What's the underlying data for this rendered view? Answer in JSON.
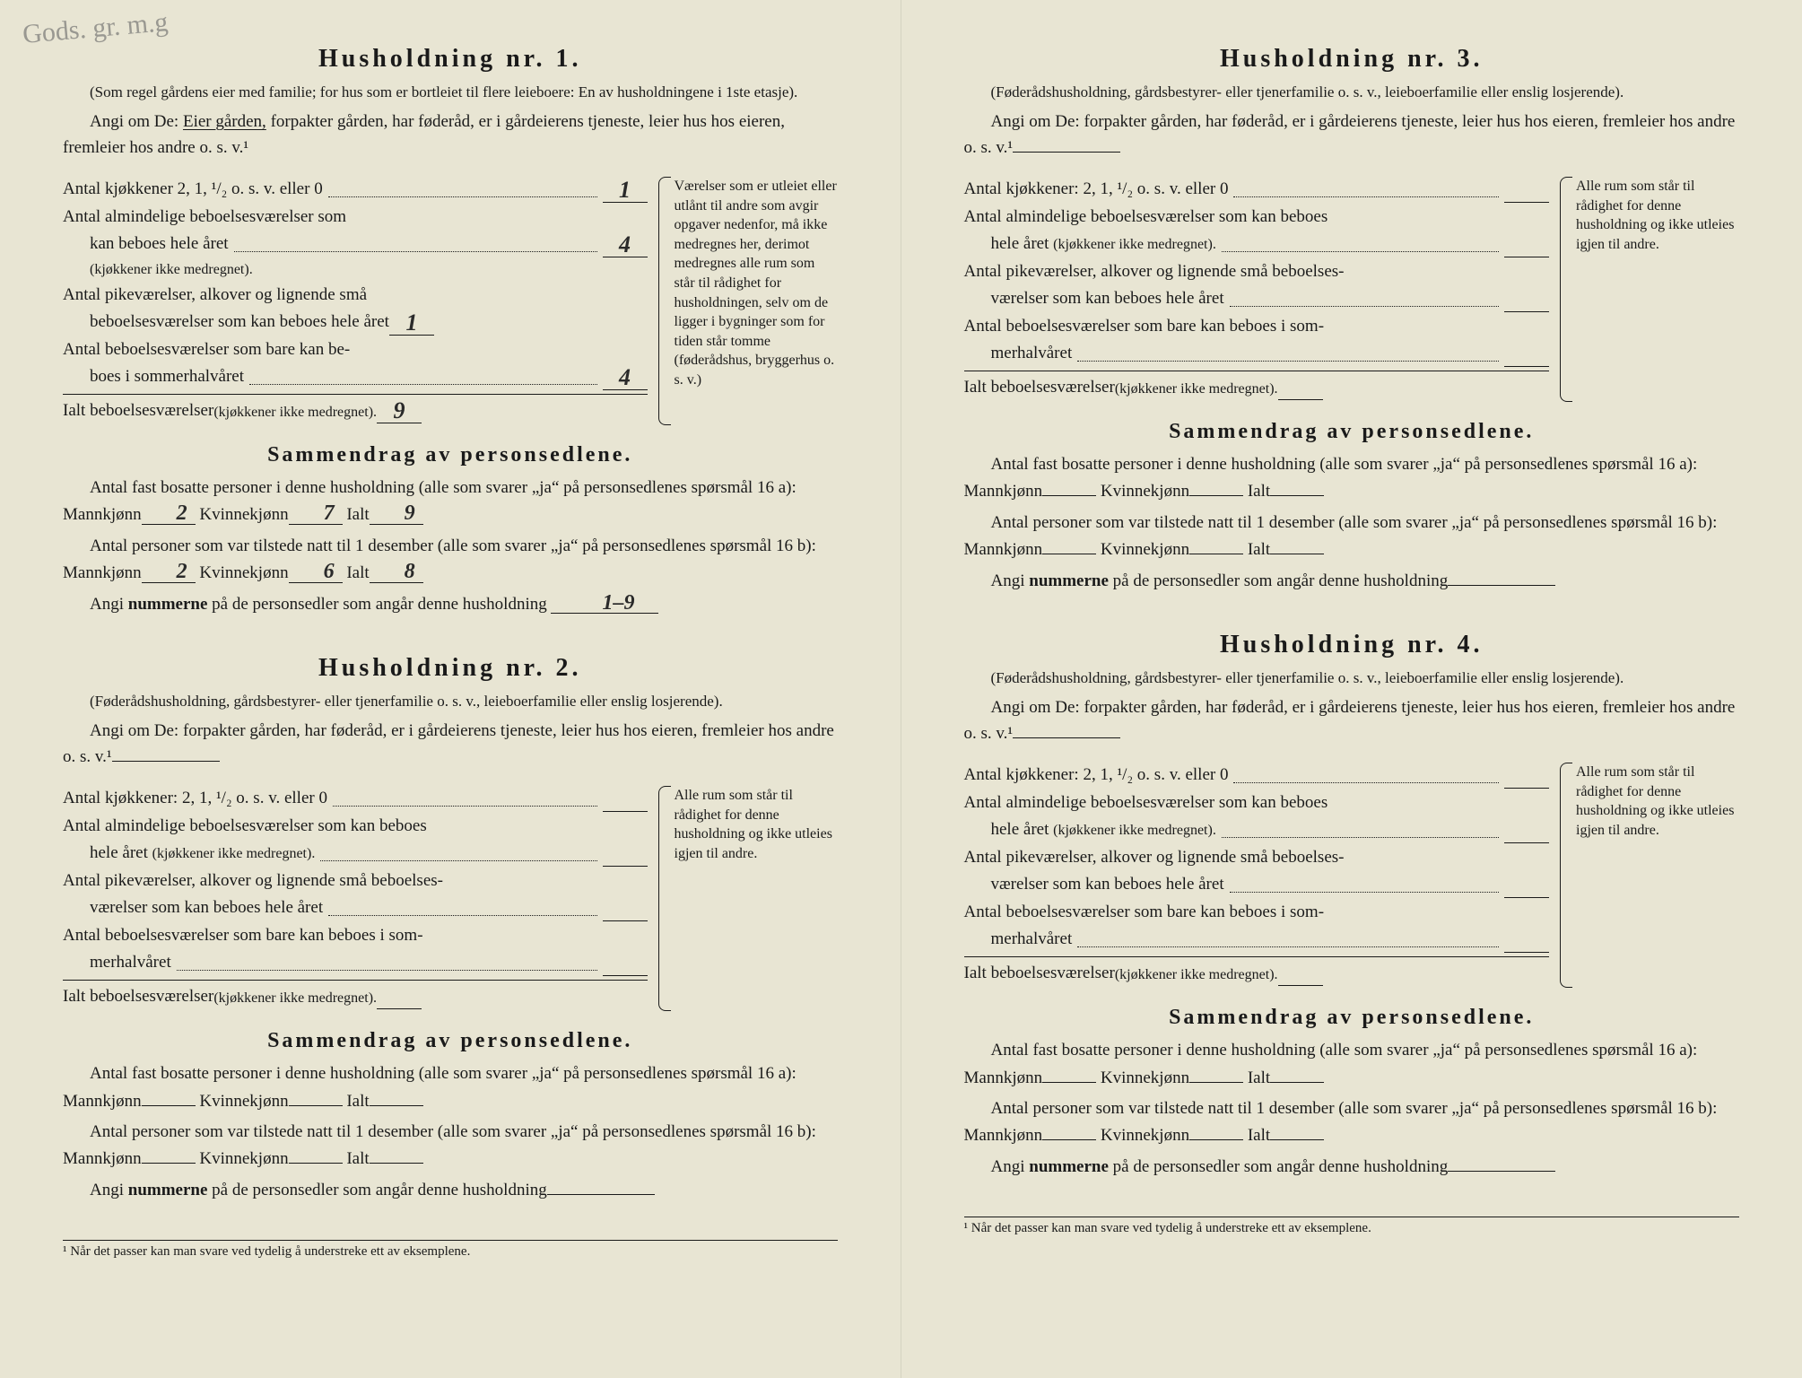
{
  "handwriting": "Gods. gr.\nm.g",
  "footnote": "¹ Når det passer kan man svare ved tydelig å understreke ett av eksemplene.",
  "h1": {
    "title": "Husholdning nr. 1.",
    "subtitle": "(Som regel gårdens eier med familie; for hus som er bortleiet til flere leieboere: En av husholdningene i 1ste etasje).",
    "angi_pre": "Angi om De:",
    "angi_under": "Eier gården,",
    "angi_rest": "forpakter gården, har føderåd, er i gårdeierens tjeneste, leier hus hos eieren, fremleier hos andre o. s. v.¹",
    "rows": {
      "r1": {
        "label": "Antal kjøkkener 2, 1, ¹/₂ o. s. v. eller 0",
        "val": "1"
      },
      "r2a": {
        "label": "Antal almindelige beboelsesværelser som",
        "val": ""
      },
      "r2b": {
        "label": "kan beboes hele året",
        "val": "4"
      },
      "r2c": {
        "paren": "(kjøkkener ikke medregnet)."
      },
      "r3a": {
        "label": "Antal pikeværelser, alkover og lignende små"
      },
      "r3b": {
        "label": "beboelsesværelser som kan beboes hele året",
        "val": "1"
      },
      "r4a": {
        "label": "Antal beboelsesværelser som bare kan be-"
      },
      "r4b": {
        "label": "boes i sommerhalvåret",
        "val": "4"
      },
      "r5": {
        "label": "Ialt beboelsesværelser",
        "paren": "(kjøkkener ikke medregnet).",
        "val": "9"
      }
    },
    "side_note": "Værelser som er utleiet eller utlånt til andre som avgir opgaver nedenfor, må ikke medregnes her, derimot medregnes alle rum som står til rådighet for husholdningen, selv om de ligger i bygninger som for tiden står tomme (føderådshus, bryggerhus o. s. v.)",
    "sum_title": "Sammendrag av personsedlene.",
    "sum1_pre": "Antal fast bosatte personer i denne husholdning (alle som svarer „ja“ på personsedlenes spørsmål 16 a):",
    "sum1": {
      "m": "2",
      "k": "7",
      "i": "9"
    },
    "sum2_pre": "Antal personer som var tilstede natt til 1 desember (alle som svarer „ja“ på personsedlenes spørsmål 16 b):",
    "sum2": {
      "m": "2",
      "k": "6",
      "i": "8"
    },
    "angi_num_pre": "Angi",
    "angi_num_bold": "nummerne",
    "angi_num_rest": "på de personsedler som angår denne husholdning",
    "angi_num_val": "1–9"
  },
  "h_generic": {
    "subtitle": "(Føderådshusholdning, gårdsbestyrer- eller tjenerfamilie o. s. v., leieboerfamilie eller enslig losjerende).",
    "angi": "Angi om De:    forpakter gården, har føderåd, er i gårdeierens tjeneste, leier hus hos eieren, fremleier hos andre o. s. v.¹",
    "rows": {
      "r1": "Antal kjøkkener: 2, 1, ¹/₂ o. s. v. eller 0",
      "r2a": "Antal almindelige beboelsesværelser som kan beboes",
      "r2b": "hele året",
      "r2b_paren": "(kjøkkener ikke medregnet).",
      "r3a": "Antal pikeværelser, alkover og lignende små beboelses-",
      "r3b": "værelser som kan beboes hele året",
      "r4a": "Antal beboelsesværelser som bare kan beboes i som-",
      "r4b": "merhalvåret",
      "r5": "Ialt beboelsesværelser",
      "r5_paren": "(kjøkkener ikke medregnet)."
    },
    "side_note": "Alle rum som står til rådighet for denne husholdning og ikke utleies igjen til andre.",
    "sum_title": "Sammendrag av personsedlene.",
    "sum1_pre": "Antal fast bosatte personer i denne husholdning (alle som svarer „ja“ på personsedlenes spørsmål 16 a):",
    "sum2_pre": "Antal personer som var tilstede natt til 1 desember (alle som svarer „ja“ på personsedlenes spørsmål 16 b):",
    "mannk": "Mannkjønn",
    "kvinnek": "Kvinnekjønn",
    "ialt": "Ialt",
    "angi_num_pre": "Angi",
    "angi_num_bold": "nummerne",
    "angi_num_rest": "på de personsedler som angår denne husholdning"
  },
  "h2": {
    "title": "Husholdning nr. 2."
  },
  "h3": {
    "title": "Husholdning nr. 3."
  },
  "h4": {
    "title": "Husholdning nr. 4."
  }
}
